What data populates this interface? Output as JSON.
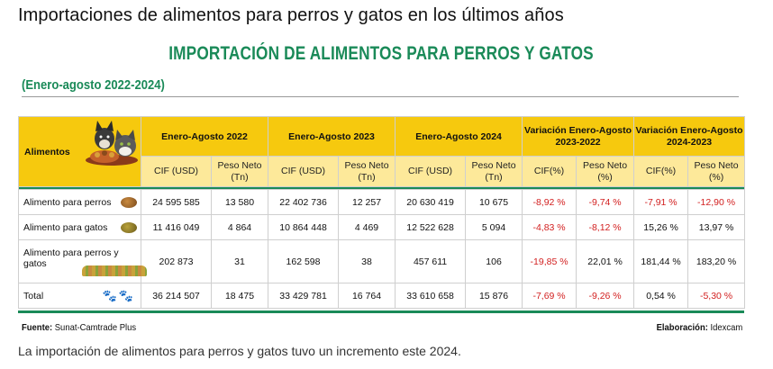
{
  "page_heading": "Importaciones de alimentos para perros y gatos en los últimos años",
  "infographic": {
    "title": "IMPORTACIÓN DE ALIMENTOS PARA PERROS Y GATOS",
    "subtitle": "(Enero-agosto 2022-2024)",
    "header": {
      "alimentos": "Alimentos",
      "group_2022": "Enero-Agosto 2022",
      "group_2023": "Enero-Agosto 2023",
      "group_2024": "Enero-Agosto 2024",
      "var_2023_2022_line1": "Variación Enero-Agosto",
      "var_2023_2022_line2": "2023-2022",
      "var_2024_2023_line1": "Variación Enero-Agosto",
      "var_2024_2023_line2": "2024-2023",
      "cif_usd": "CIF (USD)",
      "peso_neto_line1": "Peso Neto",
      "peso_neto_line2": "(Tn)",
      "cif_pct": "CIF(%)",
      "peso_pct_line1": "Peso Neto",
      "peso_pct_line2": "(%)"
    },
    "rows": [
      {
        "label": "Alimento para perros",
        "cif_2022": "24 595 585",
        "peso_2022": "13 580",
        "cif_2023": "22 402 736",
        "peso_2023": "12 257",
        "cif_2024": "20 630 419",
        "peso_2024": "10 675",
        "cif_var_23_22": "-8,92 %",
        "peso_var_23_22": "-9,74 %",
        "cif_var_24_23": "-7,91 %",
        "peso_var_24_23": "-12,90 %"
      },
      {
        "label": "Alimento para gatos",
        "cif_2022": "11 416 049",
        "peso_2022": "4 864",
        "cif_2023": "10 864 448",
        "peso_2023": "4 469",
        "cif_2024": "12 522 628",
        "peso_2024": "5 094",
        "cif_var_23_22": "-4,83 %",
        "peso_var_23_22": "-8,12 %",
        "cif_var_24_23": "15,26 %",
        "peso_var_24_23": "13,97 %"
      },
      {
        "label_line1": "Alimento para perros y",
        "label_line2": "gatos",
        "cif_2022": "202 873",
        "peso_2022": "31",
        "cif_2023": "162 598",
        "peso_2023": "38",
        "cif_2024": "457 611",
        "peso_2024": "106",
        "cif_var_23_22": "-19,85 %",
        "peso_var_23_22": "22,01 %",
        "cif_var_24_23": "181,44 %",
        "peso_var_24_23": "183,20 %"
      }
    ],
    "total": {
      "label": "Total",
      "cif_2022": "36 214 507",
      "peso_2022": "18 475",
      "cif_2023": "33 429 781",
      "peso_2023": "16 764",
      "cif_2024": "33 610 658",
      "peso_2024": "15 876",
      "cif_var_23_22": "-7,69 %",
      "peso_var_23_22": "-9,26 %",
      "cif_var_24_23": "0,54 %",
      "peso_var_24_23": "-5,30 %"
    },
    "source_label": "Fuente:",
    "source_value": "Sunat-Camtrade Plus",
    "elaboracion_label": "Elaboración:",
    "elaboracion_value": "Idexcam",
    "colors": {
      "accent_green": "#1a8a58",
      "header_yellow": "#f6c90e",
      "subheader_yellow": "#fde99a",
      "negative_red": "#d21f1f"
    },
    "icons": [
      "dog-and-cat-icon",
      "kibble-icon",
      "paw-prints-icon"
    ]
  },
  "caption": "La importación de alimentos para perros y gatos tuvo un incremento este 2024."
}
